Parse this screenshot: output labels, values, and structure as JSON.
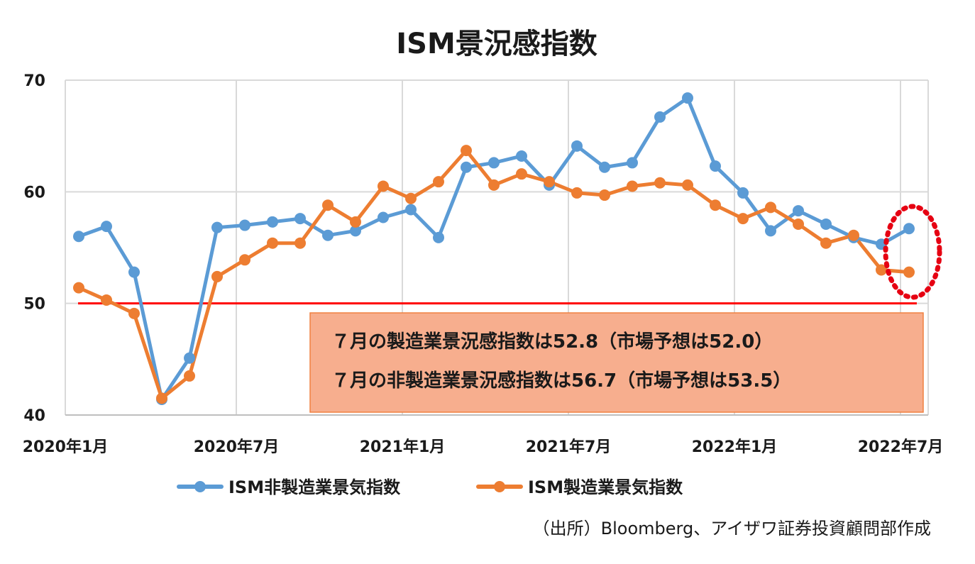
{
  "chart_data": {
    "type": "line",
    "title": "ISM景況感指数",
    "x": [
      "2020-01",
      "2020-02",
      "2020-03",
      "2020-04",
      "2020-05",
      "2020-06",
      "2020-07",
      "2020-08",
      "2020-09",
      "2020-10",
      "2020-11",
      "2020-12",
      "2021-01",
      "2021-02",
      "2021-03",
      "2021-04",
      "2021-05",
      "2021-06",
      "2021-07",
      "2021-08",
      "2021-09",
      "2021-10",
      "2021-11",
      "2021-12",
      "2022-01",
      "2022-02",
      "2022-03",
      "2022-04",
      "2022-05",
      "2022-06",
      "2022-07"
    ],
    "x_tick_labels": [
      "2020年1月",
      "2020年7月",
      "2021年1月",
      "2021年7月",
      "2022年1月",
      "2022年7月"
    ],
    "x_tick_indices": [
      0,
      6,
      12,
      18,
      24,
      30
    ],
    "y_ticks": [
      40,
      50,
      60,
      70
    ],
    "ylim": [
      40,
      70
    ],
    "grid": true,
    "series": [
      {
        "name": "ISM非製造業景気指数",
        "color": "#5B9BD5",
        "values": [
          56.0,
          56.9,
          52.8,
          41.4,
          45.1,
          56.8,
          57.0,
          57.3,
          57.6,
          56.1,
          56.5,
          57.7,
          58.4,
          55.9,
          62.2,
          62.6,
          63.2,
          60.6,
          64.1,
          62.2,
          62.6,
          66.7,
          68.4,
          62.3,
          59.9,
          56.5,
          58.3,
          57.1,
          55.9,
          55.3,
          56.7
        ]
      },
      {
        "name": "ISM製造業景気指数",
        "color": "#ED7D31",
        "values": [
          51.4,
          50.3,
          49.1,
          41.5,
          43.5,
          52.4,
          53.9,
          55.4,
          55.4,
          58.8,
          57.3,
          60.5,
          59.4,
          60.9,
          63.7,
          60.6,
          61.6,
          60.9,
          59.9,
          59.7,
          60.5,
          60.8,
          60.6,
          58.8,
          57.6,
          58.6,
          57.1,
          55.4,
          56.1,
          53.0,
          52.8
        ]
      }
    ],
    "reference_line": {
      "value": 50,
      "color": "#FF0000"
    },
    "legend_position": "bottom",
    "annotation": {
      "lines": [
        "７月の製造業景況感指数は52.8（市場予想は52.0）",
        "７月の非製造業景況感指数は56.7（市場予想は53.5）"
      ],
      "fill": "#F7AE8E",
      "border": "#F08040"
    },
    "highlight": {
      "index": 30,
      "color": "#E60012"
    }
  },
  "source": "（出所）Bloomberg、アイザワ証券投資顧問部作成"
}
